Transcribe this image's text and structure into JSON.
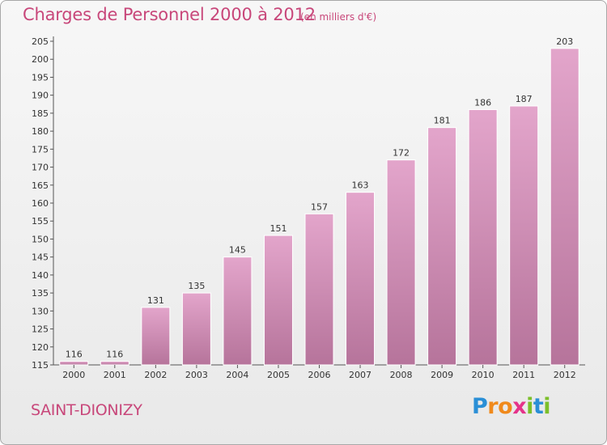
{
  "header": {
    "title": "Charges de Personnel 2000 à 2012",
    "subtitle": "(en milliers d'€)"
  },
  "footer": {
    "town": "SAINT-DIONIZY",
    "brand_letters": [
      {
        "char": "P",
        "color": "#2a8fd6"
      },
      {
        "char": "r",
        "color": "#f08a1c"
      },
      {
        "char": "o",
        "color": "#f08a1c"
      },
      {
        "char": "x",
        "color": "#e5338a"
      },
      {
        "char": "i",
        "color": "#7cbf2a"
      },
      {
        "char": "t",
        "color": "#2a8fd6"
      },
      {
        "char": "i",
        "color": "#7cbf2a"
      }
    ]
  },
  "colors": {
    "accent": "#c8477a",
    "bar_top": "#e3a5cb",
    "bar_bottom": "#b6749b",
    "bar_edge": "#ffffff"
  },
  "chart_data": {
    "type": "bar",
    "title": "Charges de Personnel 2000 à 2012",
    "subtitle": "(en milliers d'€)",
    "categories": [
      "2000",
      "2001",
      "2002",
      "2003",
      "2004",
      "2005",
      "2006",
      "2007",
      "2008",
      "2009",
      "2010",
      "2011",
      "2012"
    ],
    "values": [
      116,
      116,
      131,
      135,
      145,
      151,
      157,
      163,
      172,
      181,
      186,
      187,
      203
    ],
    "ylim": [
      115,
      205
    ],
    "yticks": [
      115,
      120,
      125,
      130,
      135,
      140,
      145,
      150,
      155,
      160,
      165,
      170,
      175,
      180,
      185,
      190,
      195,
      200,
      205
    ],
    "grid": false,
    "data_labels": true
  }
}
